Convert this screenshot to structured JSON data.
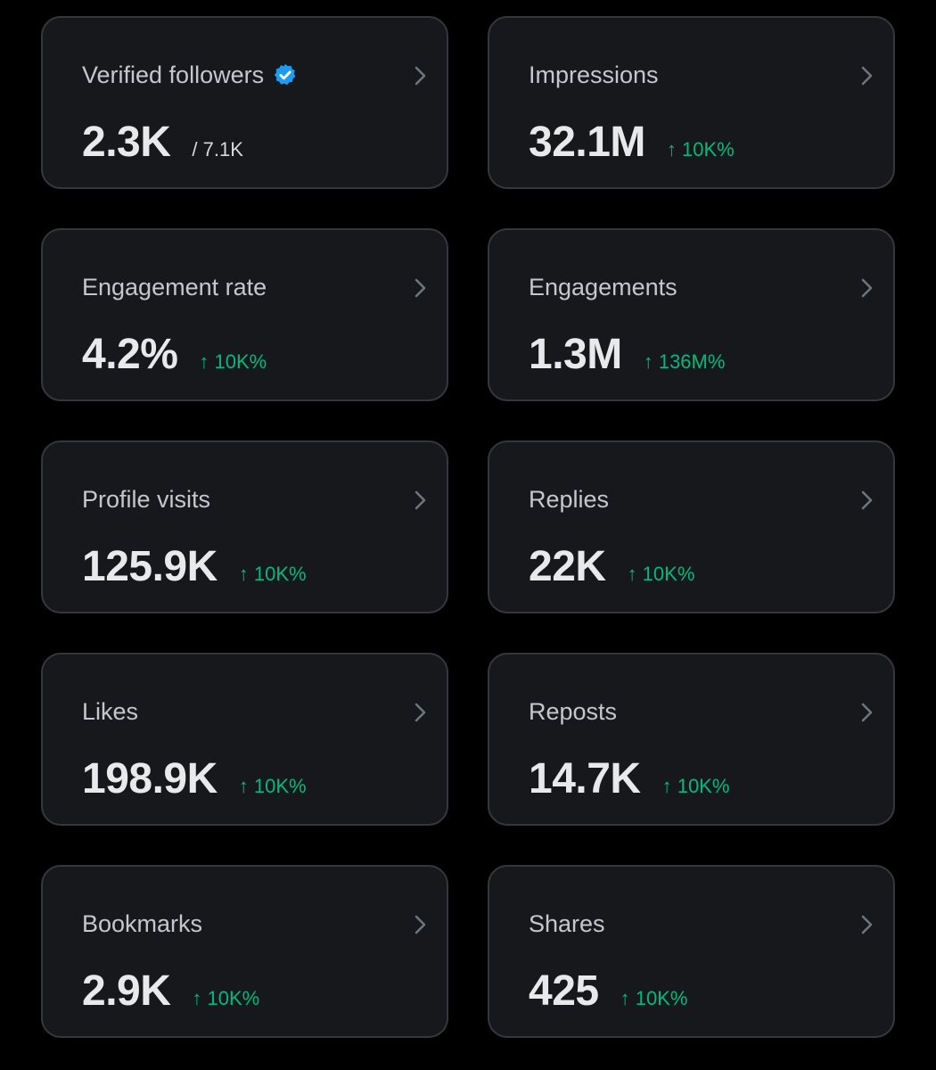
{
  "colors": {
    "background": "#000000",
    "card_background": "#16181c",
    "card_border": "#34373c",
    "label": "#c4c8cc",
    "value": "#e7e9ea",
    "positive_change": "#00ba7c",
    "verified_badge": "#1d9bf0"
  },
  "icons": {
    "verified": "verified-badge-icon",
    "chevron": "chevron-right-icon"
  },
  "metrics": [
    {
      "label": "Verified followers",
      "value": "2.3K",
      "total": "/ 7.1K"
    },
    {
      "label": "Impressions",
      "value": "32.1M",
      "change": "↑ 10K%"
    },
    {
      "label": "Engagement rate",
      "value": "4.2%",
      "change": "↑ 10K%"
    },
    {
      "label": "Engagements",
      "value": "1.3M",
      "change": "↑ 136M%"
    },
    {
      "label": "Profile visits",
      "value": "125.9K",
      "change": "↑ 10K%"
    },
    {
      "label": "Replies",
      "value": "22K",
      "change": "↑ 10K%"
    },
    {
      "label": "Likes",
      "value": "198.9K",
      "change": "↑ 10K%"
    },
    {
      "label": "Reposts",
      "value": "14.7K",
      "change": "↑ 10K%"
    },
    {
      "label": "Bookmarks",
      "value": "2.9K",
      "change": "↑ 10K%"
    },
    {
      "label": "Shares",
      "value": "425",
      "change": "↑ 10K%"
    }
  ]
}
